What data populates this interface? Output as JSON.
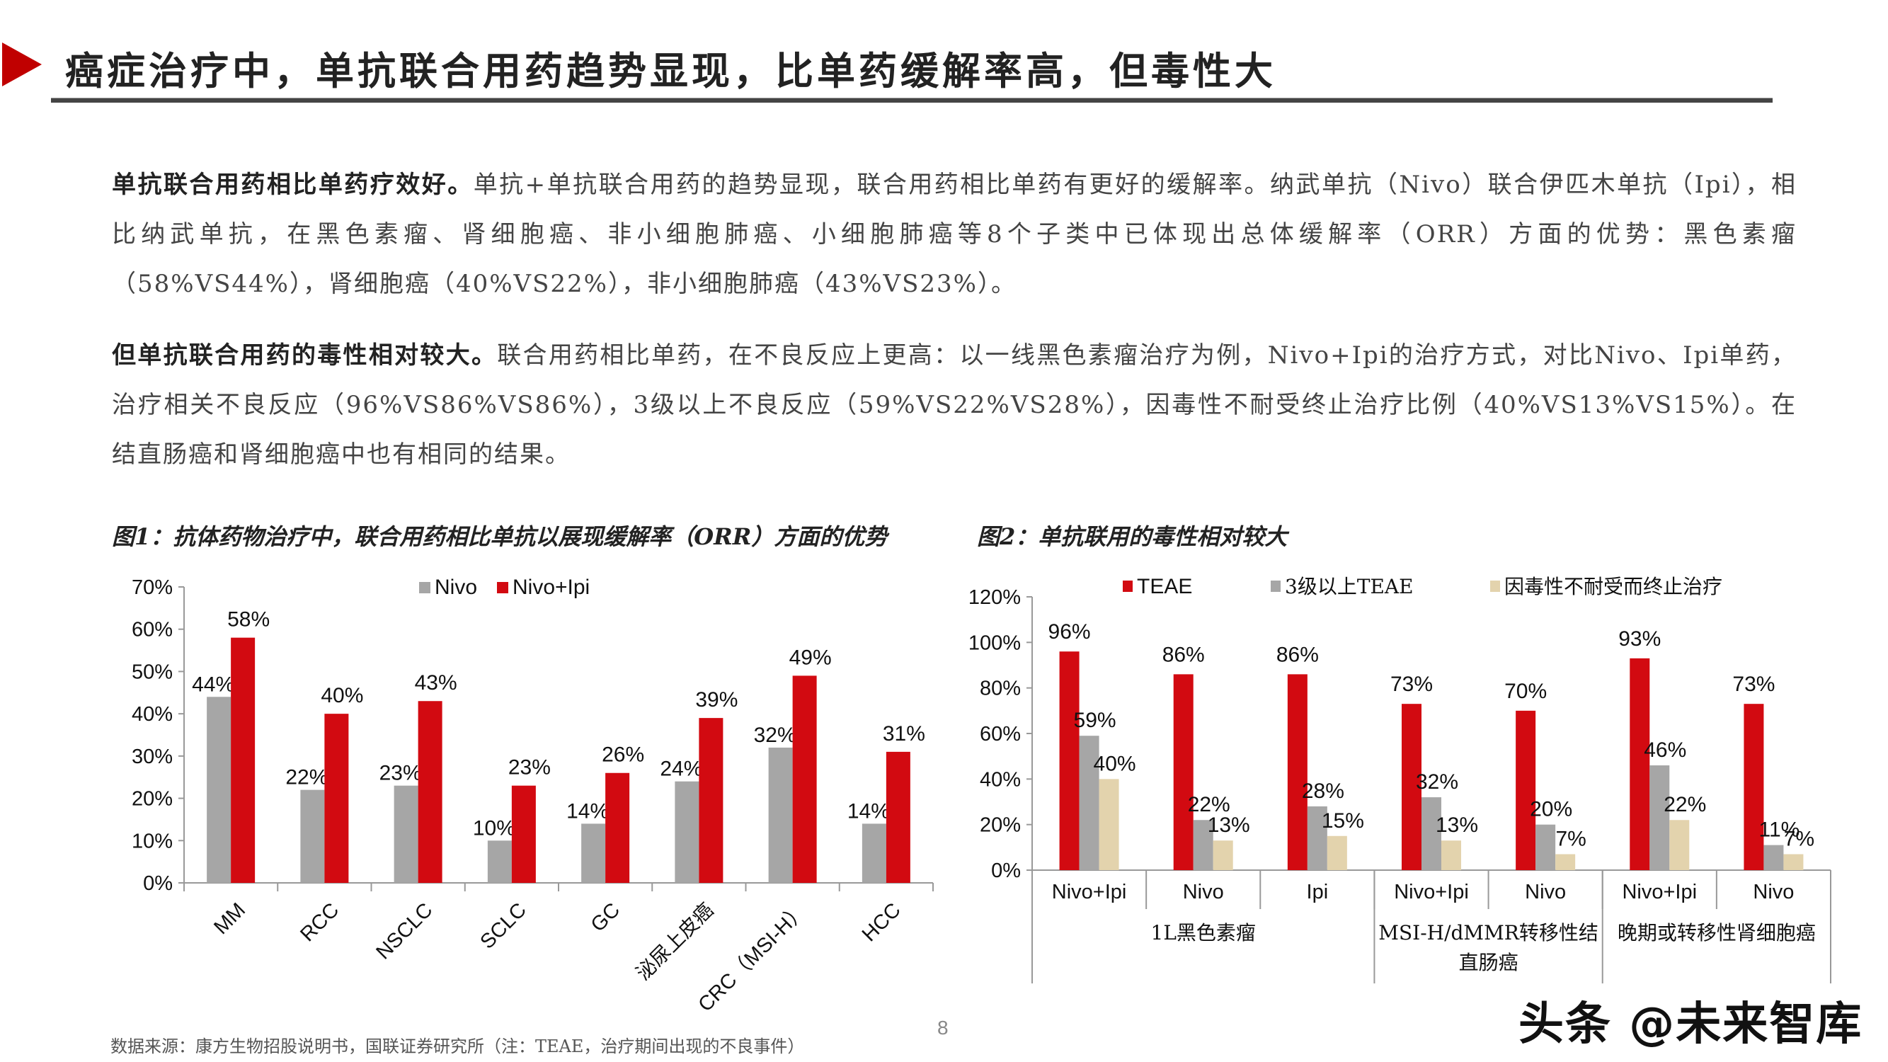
{
  "header": {
    "title": "癌症治疗中，单抗联合用药趋势显现，比单药缓解率高，但毒性大",
    "arrow_color": "#c00000"
  },
  "paragraphs": [
    {
      "bold": "单抗联合用药相比单药疗效好。",
      "text": "单抗+单抗联合用药的趋势显现，联合用药相比单药有更好的缓解率。纳武单抗（Nivo）联合伊匹木单抗（Ipi），相比纳武单抗，在黑色素瘤、肾细胞癌、非小细胞肺癌、小细胞肺癌等8个子类中已体现出总体缓解率（ORR）方面的优势：黑色素瘤（58%VS44%），肾细胞癌（40%VS22%），非小细胞肺癌（43%VS23%）。"
    },
    {
      "bold": "但单抗联合用药的毒性相对较大。",
      "text": "联合用药相比单药，在不良反应上更高：以一线黑色素瘤治疗为例，Nivo+Ipi的治疗方式，对比Nivo、Ipi单药，治疗相关不良反应（96%VS86%VS86%），3级以上不良反应（59%VS22%VS28%），因毒性不耐受终止治疗比例（40%VS13%VS15%）。在结直肠癌和肾细胞癌中也有相同的结果。"
    }
  ],
  "figures": {
    "fig1_title": "图1：抗体药物治疗中，联合用药相比单抗以展现缓解率（ORR）方面的优势",
    "fig2_title": "图2：单抗联用的毒性相对较大"
  },
  "chart_data": [
    {
      "type": "bar",
      "title": "图1：抗体药物治疗中，联合用药相比单抗以展现缓解率（ORR）方面的优势",
      "categories": [
        "MM",
        "RCC",
        "NSCLC",
        "SCLC",
        "GC",
        "泌尿上皮癌",
        "CRC（MSI-H）",
        "HCC"
      ],
      "series": [
        {
          "name": "Nivo",
          "color": "#a6a6a6",
          "values": [
            44,
            22,
            23,
            10,
            14,
            24,
            32,
            14
          ]
        },
        {
          "name": "Nivo+Ipi",
          "color": "#d20a11",
          "values": [
            58,
            40,
            43,
            23,
            26,
            39,
            49,
            31
          ]
        }
      ],
      "yticks": [
        "0%",
        "10%",
        "20%",
        "30%",
        "40%",
        "50%",
        "60%",
        "70%"
      ],
      "ylim": [
        0,
        70
      ],
      "xlabel": "",
      "ylabel": "",
      "legend_position": "top",
      "grid": false
    },
    {
      "type": "bar",
      "title": "图2：单抗联用的毒性相对较大",
      "categories": [
        "Nivo+Ipi",
        "Nivo",
        "Ipi",
        "Nivo+Ipi",
        "Nivo",
        "Nivo+Ipi",
        "Nivo"
      ],
      "groups": [
        {
          "label": "1L黑色素瘤",
          "span": 3
        },
        {
          "label": "MSI-H/dMMR转移性结直肠癌",
          "span": 2
        },
        {
          "label": "晚期或转移性肾细胞癌",
          "span": 2
        }
      ],
      "series": [
        {
          "name": "TEAE",
          "color": "#d20a11",
          "values": [
            96,
            86,
            86,
            73,
            70,
            93,
            73
          ]
        },
        {
          "name": "3级以上TEAE",
          "color": "#a6a6a6",
          "values": [
            59,
            22,
            28,
            32,
            20,
            46,
            11
          ]
        },
        {
          "name": "因毒性不耐受而终止治疗",
          "color": "#e3d3ad",
          "values": [
            40,
            13,
            15,
            13,
            7,
            22,
            7
          ]
        }
      ],
      "yticks": [
        "0%",
        "20%",
        "40%",
        "60%",
        "80%",
        "100%",
        "120%"
      ],
      "ylim": [
        0,
        120
      ],
      "xlabel": "",
      "ylabel": "",
      "legend_position": "top",
      "grid": false
    }
  ],
  "footer": {
    "source": "数据来源：康方生物招股说明书，国联证券研究所（注：TEAE，治疗期间出现的不良事件）",
    "page_number": "8",
    "watermark": "头条 @未来智库"
  }
}
